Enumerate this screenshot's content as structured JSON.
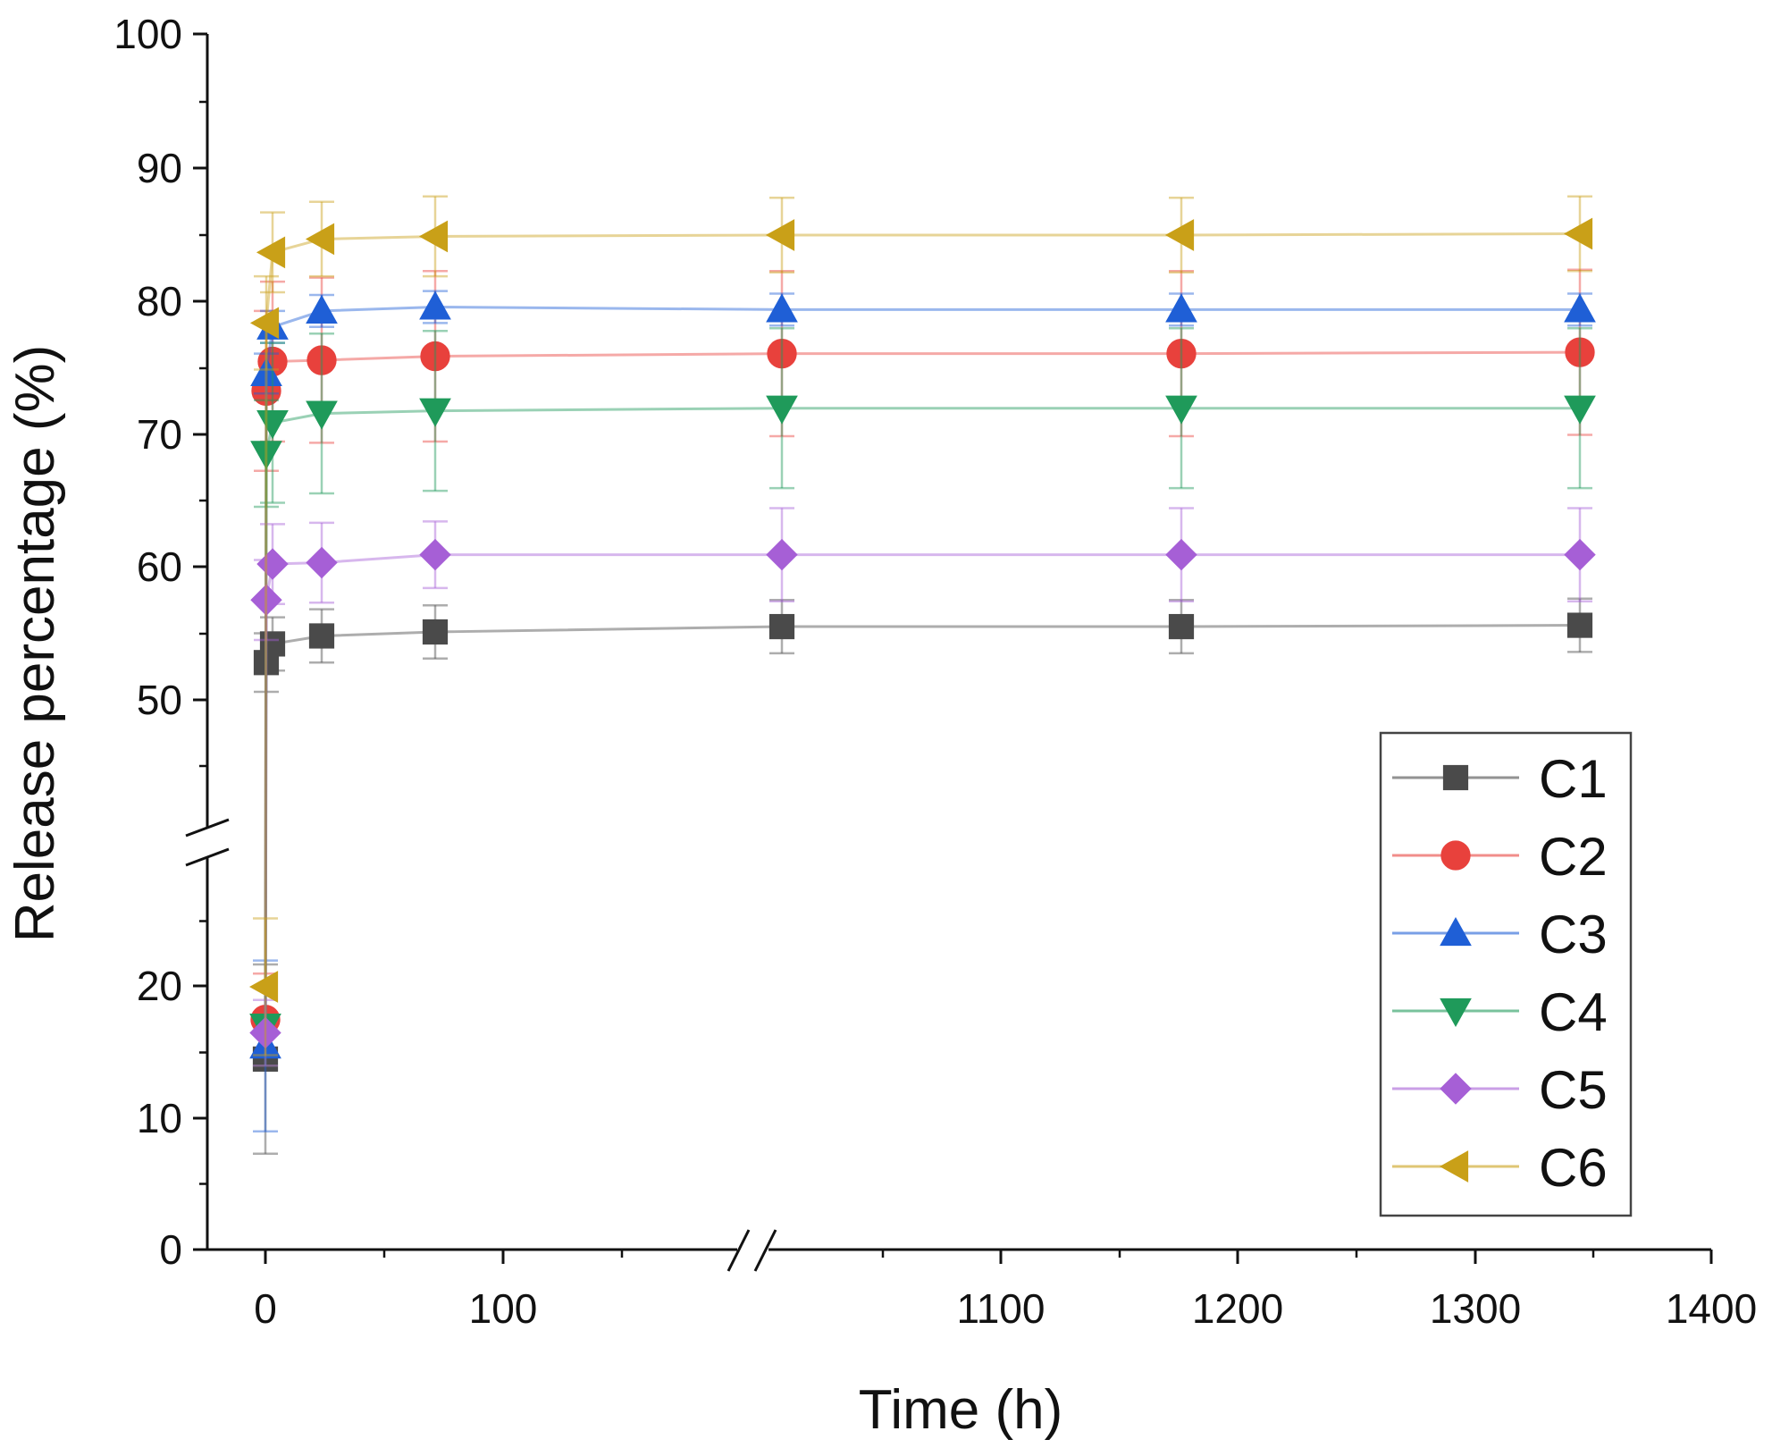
{
  "chart_data": {
    "type": "scatter",
    "title": "",
    "xlabel": "Time (h)",
    "ylabel": "Release percentage (%)",
    "x_axis": {
      "break": "between 100 and 1000",
      "ticks": [
        0,
        100,
        1100,
        1200,
        1300,
        1400
      ],
      "tick_labels": [
        "0",
        "100",
        "1100",
        "1200",
        "1300",
        "1400"
      ]
    },
    "y_axis": {
      "break": "between 25 and 40",
      "ticks": [
        0,
        10,
        20,
        50,
        60,
        70,
        80,
        90,
        100
      ],
      "tick_labels": [
        "0",
        "10",
        "20",
        "50",
        "60",
        "70",
        "80",
        "90",
        "100"
      ]
    },
    "legend_position": "bottom-right",
    "x": [
      0,
      2,
      4,
      24,
      72,
      1000,
      1168,
      1344
    ],
    "series": [
      {
        "name": "C1",
        "color": "#4a4a4a",
        "marker": "square",
        "values": [
          14.5,
          52.8,
          54.2,
          54.8,
          55.1,
          55.5,
          55.5,
          55.6
        ],
        "errors": [
          7.2,
          2.2,
          2.0,
          2.0,
          2.0,
          2.0,
          2.0,
          2.0
        ]
      },
      {
        "name": "C2",
        "color": "#e8413c",
        "marker": "circle",
        "values": [
          17.5,
          73.2,
          75.4,
          75.5,
          75.8,
          76.0,
          76.0,
          76.1
        ],
        "errors": [
          3.5,
          6.0,
          6.0,
          6.2,
          6.4,
          6.2,
          6.2,
          6.2
        ]
      },
      {
        "name": "C3",
        "color": "#1f5fd6",
        "marker": "triangle-up",
        "values": [
          15.5,
          74.5,
          78.0,
          79.2,
          79.5,
          79.3,
          79.3,
          79.3
        ],
        "errors": [
          6.5,
          1.5,
          1.2,
          1.2,
          1.2,
          1.2,
          1.2,
          1.2
        ]
      },
      {
        "name": "C4",
        "color": "#1f9a5a",
        "marker": "triangle-down",
        "values": [
          17.0,
          68.5,
          70.8,
          71.5,
          71.7,
          71.9,
          71.9,
          71.9
        ],
        "errors": [
          3.0,
          4.0,
          6.0,
          6.0,
          6.0,
          6.0,
          6.0,
          6.0
        ]
      },
      {
        "name": "C5",
        "color": "#a65fd6",
        "marker": "diamond",
        "values": [
          16.5,
          57.5,
          60.2,
          60.3,
          60.9,
          60.9,
          60.9,
          60.9
        ],
        "errors": [
          2.5,
          3.0,
          3.0,
          3.0,
          2.5,
          3.5,
          3.5,
          3.5
        ]
      },
      {
        "name": "C6",
        "color": "#c9a018",
        "marker": "triangle-left",
        "values": [
          20.0,
          78.3,
          83.6,
          84.6,
          84.8,
          84.9,
          84.9,
          85.0
        ],
        "errors": [
          5.2,
          3.5,
          3.0,
          2.8,
          3.0,
          2.8,
          2.8,
          2.8
        ]
      }
    ]
  }
}
